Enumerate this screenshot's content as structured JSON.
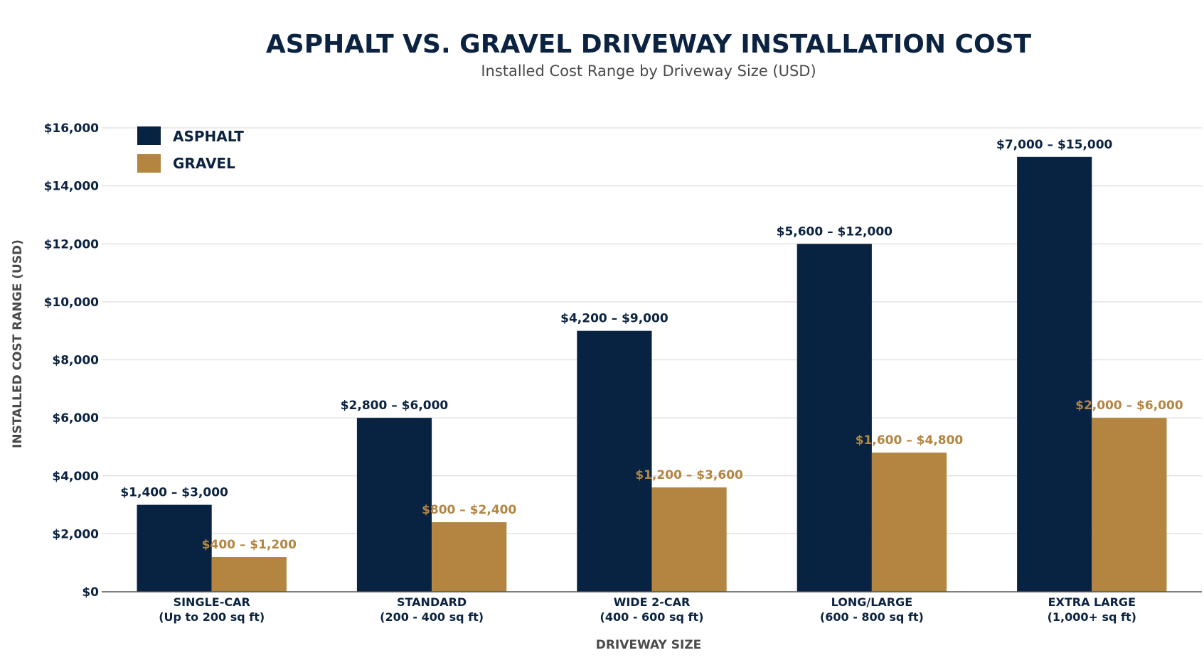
{
  "chart_data": {
    "type": "bar",
    "title": "ASPHALT VS. GRAVEL DRIVEWAY INSTALLATION COST",
    "subtitle": "Installed Cost Range by Driveway Size (USD)",
    "xlabel": "DRIVEWAY SIZE",
    "ylabel": "INSTALLED COST RANGE (USD)",
    "ylim": [
      0,
      16000
    ],
    "yticks": [
      0,
      2000,
      4000,
      6000,
      8000,
      10000,
      12000,
      14000,
      16000
    ],
    "ytick_labels": [
      "$0",
      "$2,000",
      "$4,000",
      "$6,000",
      "$8,000",
      "$10,000",
      "$12,000",
      "$14,000",
      "$16,000"
    ],
    "grid": true,
    "legend_position": "top-left",
    "categories": [
      {
        "name": "SINGLE-CAR",
        "detail": "(Up to 200 sq ft)"
      },
      {
        "name": "STANDARD",
        "detail": "(200 - 400 sq ft)"
      },
      {
        "name": "WIDE 2-CAR",
        "detail": "(400 - 600 sq ft)"
      },
      {
        "name": "LONG/LARGE",
        "detail": "(600 - 800 sq ft)"
      },
      {
        "name": "EXTRA LARGE",
        "detail": "(1,000+ sq ft)"
      }
    ],
    "series": [
      {
        "name": "ASPHALT",
        "color": "#082342",
        "values": [
          3000,
          6000,
          9000,
          12000,
          15000
        ],
        "labels": [
          "$1,400 – $3,000",
          "$2,800 – $6,000",
          "$4,200 – $9,000",
          "$5,600 – $12,000",
          "$7,000 – $15,000"
        ]
      },
      {
        "name": "GRAVEL",
        "color": "#b38541",
        "values": [
          1200,
          2400,
          3600,
          4800,
          6000
        ],
        "labels": [
          "$400 – $1,200",
          "$800 – $2,400",
          "$1,200 – $3,600",
          "$1,600 – $4,800",
          "$2,000 – $6,000"
        ]
      }
    ],
    "colors": {
      "title": "#0b2340",
      "subtitle": "#4a4a4a",
      "axis_label": "#4a4a4a",
      "tick": "#0b2340",
      "grid": "#dddddd",
      "axis_line": "#555555"
    }
  }
}
